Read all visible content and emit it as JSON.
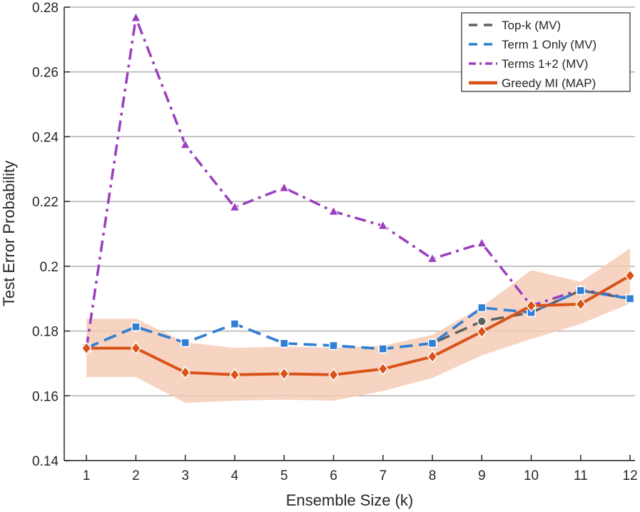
{
  "chart_data": {
    "type": "line",
    "title": "",
    "xlabel": "Ensemble Size (k)",
    "ylabel": "Test Error Probability",
    "x": [
      1,
      2,
      3,
      4,
      5,
      6,
      7,
      8,
      9,
      10,
      11,
      12
    ],
    "xlim": [
      0.55,
      12.1
    ],
    "ylim": [
      0.14,
      0.28
    ],
    "xticks": [
      "1",
      "2",
      "3",
      "4",
      "5",
      "6",
      "7",
      "8",
      "9",
      "10",
      "11",
      "12"
    ],
    "yticks": [
      "0.14",
      "0.16",
      "0.18",
      "0.2",
      "0.22",
      "0.24",
      "0.26",
      "0.28"
    ],
    "ytick_values": [
      0.14,
      0.16,
      0.18,
      0.2,
      0.22,
      0.24,
      0.26,
      0.28
    ],
    "grid": "horizontal",
    "legend_position": "top-right",
    "series": [
      {
        "name": "Top-k (MV)",
        "color": "#606060",
        "line_style": "dashed",
        "marker": "circle",
        "values": [
          0.1748,
          0.1813,
          0.1764,
          0.1822,
          0.1762,
          0.1755,
          0.1745,
          0.1762,
          0.183,
          0.1857,
          0.1925,
          0.19
        ]
      },
      {
        "name": "Term 1 Only (MV)",
        "color": "#2f7fd6",
        "line_style": "dashed",
        "marker": "square",
        "values": [
          0.1748,
          0.1813,
          0.1764,
          0.1822,
          0.1762,
          0.1755,
          0.1745,
          0.1762,
          0.1872,
          0.1857,
          0.1925,
          0.19
        ]
      },
      {
        "name": "Terms 1+2 (MV)",
        "color": "#9b3fbf",
        "line_style": "dashdot",
        "marker": "triangle",
        "values": [
          0.1748,
          0.2767,
          0.2375,
          0.2182,
          0.2242,
          0.2169,
          0.2125,
          0.2023,
          0.2071,
          0.1878,
          0.1928,
          0.1902
        ]
      },
      {
        "name": "Greedy MI (MAP)",
        "color": "#d95319",
        "line_style": "solid",
        "marker": "diamond",
        "values": [
          0.1747,
          0.1747,
          0.1672,
          0.1665,
          0.1668,
          0.1665,
          0.1683,
          0.1721,
          0.1798,
          0.1878,
          0.1883,
          0.1971
        ],
        "band_color": "#f5c9b3",
        "band_lower": [
          0.1658,
          0.1658,
          0.1578,
          0.1585,
          0.1588,
          0.1585,
          0.1615,
          0.1655,
          0.1725,
          0.1775,
          0.1822,
          0.1885
        ],
        "band_upper": [
          0.1838,
          0.1838,
          0.1765,
          0.1748,
          0.1752,
          0.1748,
          0.1755,
          0.1788,
          0.1875,
          0.1988,
          0.1952,
          0.2055
        ]
      }
    ]
  }
}
